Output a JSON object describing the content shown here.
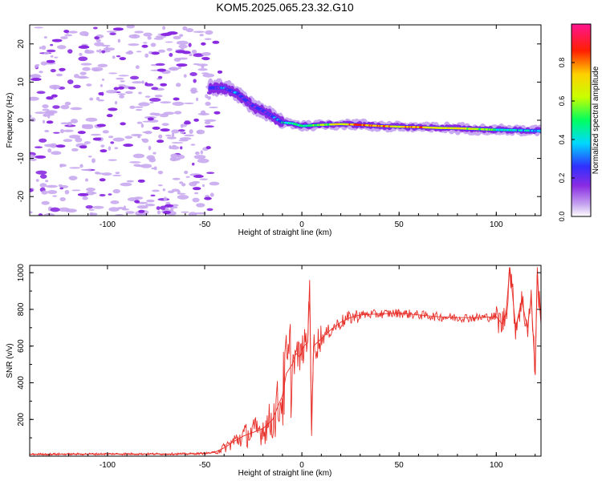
{
  "title": "KOM5.2025.065.23.32.G10",
  "chart_data": [
    {
      "type": "heatmap",
      "xlabel": "Height of straight line (km)",
      "ylabel": "Frequency (Hz)",
      "xlim": [
        -140,
        123
      ],
      "ylim": [
        -25,
        25
      ],
      "xticks": [
        -100,
        -50,
        0,
        50,
        100
      ],
      "yticks": [
        -20,
        -10,
        0,
        10,
        20
      ],
      "colorbar": {
        "label": "Normalized spectral amplitude",
        "range": [
          0,
          1
        ],
        "ticks": [
          0.0,
          0.2,
          0.4,
          0.6,
          0.8
        ],
        "tick_labels": [
          "0.0",
          "0.2",
          "0.4",
          "0.6",
          "0.8"
        ],
        "colors": [
          "#ffffff",
          "#c8a8f0",
          "#8a2be2",
          "#3030ff",
          "#00d8ff",
          "#00ff60",
          "#c8ff00",
          "#ffd000",
          "#ff2000",
          "#ff1490"
        ]
      },
      "ridge": {
        "x": [
          -47,
          -40,
          -33,
          -26,
          -20,
          -15,
          -10,
          -5,
          0,
          10,
          20,
          30,
          40,
          50,
          60,
          70,
          80,
          90,
          100,
          110,
          123
        ],
        "freq_hz": [
          8.5,
          8.5,
          7.0,
          4.0,
          2.5,
          1.0,
          -0.6,
          -0.8,
          -1.5,
          -1.2,
          -1.0,
          -1.2,
          -1.5,
          -1.7,
          -1.8,
          -2.0,
          -2.1,
          -2.3,
          -2.5,
          -2.6,
          -2.8
        ],
        "amplitude": [
          0.3,
          0.35,
          0.3,
          0.25,
          0.3,
          0.35,
          0.4,
          0.45,
          0.55,
          0.6,
          0.75,
          0.85,
          0.8,
          0.75,
          0.8,
          0.7,
          0.75,
          0.65,
          0.55,
          0.45,
          0.4
        ]
      },
      "noise_x_range": [
        -140,
        -45
      ],
      "noise_amplitude_typical": 0.15
    },
    {
      "type": "line",
      "xlabel": "Height of straight line (km)",
      "ylabel": "SNR (v/v)",
      "xlim": [
        -140,
        123
      ],
      "ylim": [
        0,
        1040
      ],
      "xticks": [
        -100,
        -50,
        0,
        50,
        100
      ],
      "yticks": [
        200,
        400,
        600,
        800,
        1000
      ],
      "color": "#e8302a",
      "x": [
        -140,
        -100,
        -60,
        -50,
        -45,
        -40,
        -35,
        -30,
        -25,
        -20,
        -15,
        -12,
        -10,
        -8,
        -5,
        -3,
        -1,
        1,
        3,
        4,
        5,
        6,
        8,
        10,
        15,
        20,
        25,
        30,
        40,
        50,
        60,
        70,
        80,
        90,
        100,
        103,
        105,
        107,
        110,
        113,
        116,
        118,
        120,
        121,
        123
      ],
      "y": [
        10,
        12,
        12,
        15,
        20,
        45,
        80,
        110,
        130,
        150,
        200,
        280,
        330,
        450,
        500,
        560,
        540,
        600,
        620,
        960,
        110,
        600,
        620,
        640,
        690,
        730,
        755,
        770,
        775,
        780,
        770,
        760,
        755,
        755,
        760,
        720,
        780,
        1030,
        700,
        850,
        700,
        860,
        450,
        990,
        720
      ],
      "annotations": []
    }
  ]
}
